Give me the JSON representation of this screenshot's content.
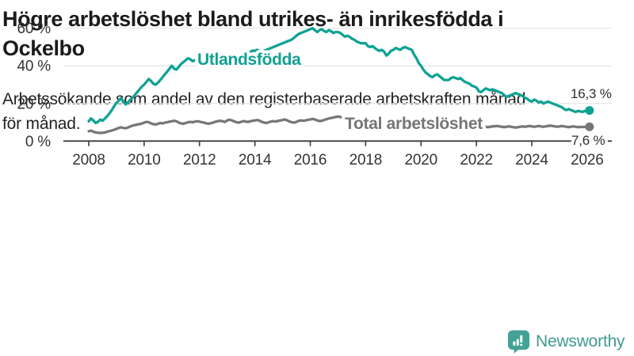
{
  "header": {
    "title": "Högre arbetslöshet bland utrikes- än inrikesfödda i Ockelbo",
    "title_lines": [
      "Högre arbetslöshet bland utrikes- än inrikesfödda i",
      "Ockelbo"
    ],
    "subtitle": "Arbetssökande som andel av den registerbaserade arbetskraften månad för månad.",
    "subtitle_lines": [
      "Arbetssökande som andel av den registerbaserade arbetskraften månad",
      "för månad."
    ]
  },
  "chart_data": {
    "type": "line",
    "frequency": "monthly",
    "x_start": "2008-01",
    "x_end": "2026-02",
    "x_ticks": [
      2008,
      2010,
      2012,
      2014,
      2016,
      2018,
      2020,
      2022,
      2024,
      2026
    ],
    "y_ticks": [
      0,
      20,
      40,
      60
    ],
    "y_tick_suffix": " %",
    "ylim": [
      0,
      63
    ],
    "grid": "horizontal",
    "colors": {
      "grid": "#e4e4e4",
      "axis": "#3c3c3c",
      "tick_text": "#333333",
      "annotation_text": "#2e2e2e"
    },
    "series": [
      {
        "name": "Utlandsfödda",
        "color": "#0fa294",
        "end_label": "16,3 %",
        "end_value": 16.3,
        "values": [
          10.5,
          12,
          11,
          9.6,
          10.2,
          11.4,
          10.8,
          12,
          13.2,
          14.8,
          16.5,
          18.5,
          20.3,
          21.5,
          22.8,
          21,
          19.5,
          20.5,
          22,
          23,
          24.5,
          26,
          27.5,
          29,
          30,
          31.5,
          33,
          32,
          30.5,
          30,
          31,
          32.5,
          34,
          35.5,
          37,
          38.5,
          40,
          38.5,
          38,
          39.5,
          41,
          42,
          43,
          44,
          43.5,
          42.5,
          43,
          43.5,
          43.5,
          44.5,
          43.8,
          43,
          43.5,
          44,
          44.5,
          44,
          43.5,
          43,
          43.5,
          44,
          44.5,
          45,
          45.5,
          45,
          44.5,
          45,
          45.5,
          46,
          46.5,
          47,
          47.5,
          48,
          48,
          48.5,
          48,
          47.5,
          48,
          48.5,
          49,
          49.5,
          50,
          50.5,
          51,
          51.5,
          52,
          52.5,
          53,
          53.5,
          54,
          55,
          56,
          57,
          57.5,
          58,
          58.5,
          59,
          59.5,
          60,
          59,
          58,
          59,
          59.5,
          58.5,
          58,
          59,
          58.5,
          57.5,
          58,
          58,
          57.5,
          56.5,
          55.5,
          56,
          55.5,
          54.5,
          54,
          53,
          52.5,
          52,
          52,
          52,
          50.5,
          50,
          50.5,
          49.5,
          48.5,
          48,
          48.5,
          47.5,
          45.5,
          46.5,
          48,
          48.5,
          49.5,
          49,
          48.5,
          49.5,
          50,
          49.5,
          49,
          48.5,
          46,
          44,
          41.5,
          40,
          38,
          36.5,
          35.5,
          34.5,
          34,
          35,
          35.5,
          34.5,
          33.5,
          32.5,
          32.5,
          32.5,
          33.5,
          34,
          33.5,
          33,
          33.5,
          32.5,
          31.5,
          31,
          30.5,
          29.5,
          29,
          28.5,
          26.5,
          26,
          27,
          28,
          27.5,
          27,
          27.5,
          27,
          26.5,
          26,
          25.5,
          24.5,
          23.5,
          24,
          24.5,
          25,
          25.5,
          25,
          24.5,
          24,
          23,
          22.5,
          21.5,
          21,
          22,
          21.5,
          20.5,
          21,
          20,
          20.5,
          21,
          20.5,
          20,
          19.5,
          19,
          18.5,
          18,
          17,
          16.5,
          17,
          16.5,
          16,
          15.5,
          16,
          15.8,
          15.5,
          16,
          16.1,
          16.3
        ]
      },
      {
        "name": "Total arbetslöshet",
        "color": "#757575",
        "line_color": "#777777",
        "end_label": "7,6 %",
        "end_value": 7.6,
        "values": [
          5.2,
          5.5,
          5,
          4.6,
          4.4,
          4.3,
          4.4,
          4.6,
          5,
          5.3,
          5.6,
          6,
          6.5,
          7,
          7.3,
          7,
          6.8,
          7.2,
          7.8,
          8.2,
          8.5,
          8.8,
          9,
          9.3,
          9.8,
          10.2,
          10,
          9.4,
          9,
          8.8,
          9.2,
          9.6,
          9.4,
          9.8,
          10,
          10.3,
          10.5,
          10.8,
          10.5,
          9.8,
          9.4,
          9.2,
          9.6,
          10,
          10.2,
          10,
          10.3,
          10.5,
          10.3,
          10,
          9.8,
          9.4,
          9.2,
          9.5,
          9.9,
          10.3,
          10.6,
          10.8,
          10.5,
          10.2,
          11,
          11.3,
          11,
          10.5,
          10,
          9.8,
          10.2,
          10.6,
          10.4,
          10.2,
          10.5,
          10.8,
          11,
          11.2,
          10.8,
          10.2,
          9.8,
          9.6,
          10,
          10.4,
          10.6,
          10.4,
          10.7,
          11,
          11.2,
          11.5,
          11,
          10.4,
          10,
          9.8,
          10.2,
          10.8,
          11,
          10.8,
          11,
          11.3,
          11.5,
          11.8,
          11.5,
          11,
          10.6,
          10.8,
          11.2,
          11.6,
          12,
          12.3,
          12.5,
          12.8,
          13,
          12.8,
          12.5,
          12,
          11.6,
          11.4,
          11.8,
          12,
          11.8,
          11.5,
          11.2,
          11,
          10.8,
          10.6,
          10.4,
          10,
          9.8,
          9.6,
          9.8,
          10,
          9.8,
          9.6,
          9.4,
          9.2,
          9.4,
          9.6,
          9.4,
          9.2,
          9,
          9.2,
          9.4,
          9.6,
          9.4,
          9.2,
          9,
          9.2,
          9.5,
          9.8,
          10,
          10.2,
          10,
          9.8,
          9.6,
          9.4,
          9.2,
          9,
          8.8,
          8.6,
          8.8,
          9,
          8.8,
          8.6,
          8.4,
          8.2,
          8.4,
          8.6,
          8.4,
          8.2,
          8,
          7.8,
          8,
          8.2,
          8,
          7.8,
          7.6,
          7.4,
          7.6,
          7.8,
          7.9,
          8,
          7.8,
          7.6,
          7.4,
          7.6,
          7.8,
          7.6,
          7.4,
          7.2,
          7.4,
          7.6,
          7.8,
          7.6,
          7.8,
          8,
          7.8,
          7.6,
          7.8,
          8,
          7.8,
          7.6,
          7.8,
          8,
          8.2,
          8,
          7.8,
          7.6,
          7.8,
          8,
          7.8,
          7.6,
          7.4,
          7.6,
          7.8,
          7.6,
          7.4,
          7.5,
          7.5,
          7.5,
          7.5,
          7.6
        ]
      }
    ]
  },
  "footer": {
    "brand": "Newsworthy",
    "logo_color": "#44a294"
  }
}
